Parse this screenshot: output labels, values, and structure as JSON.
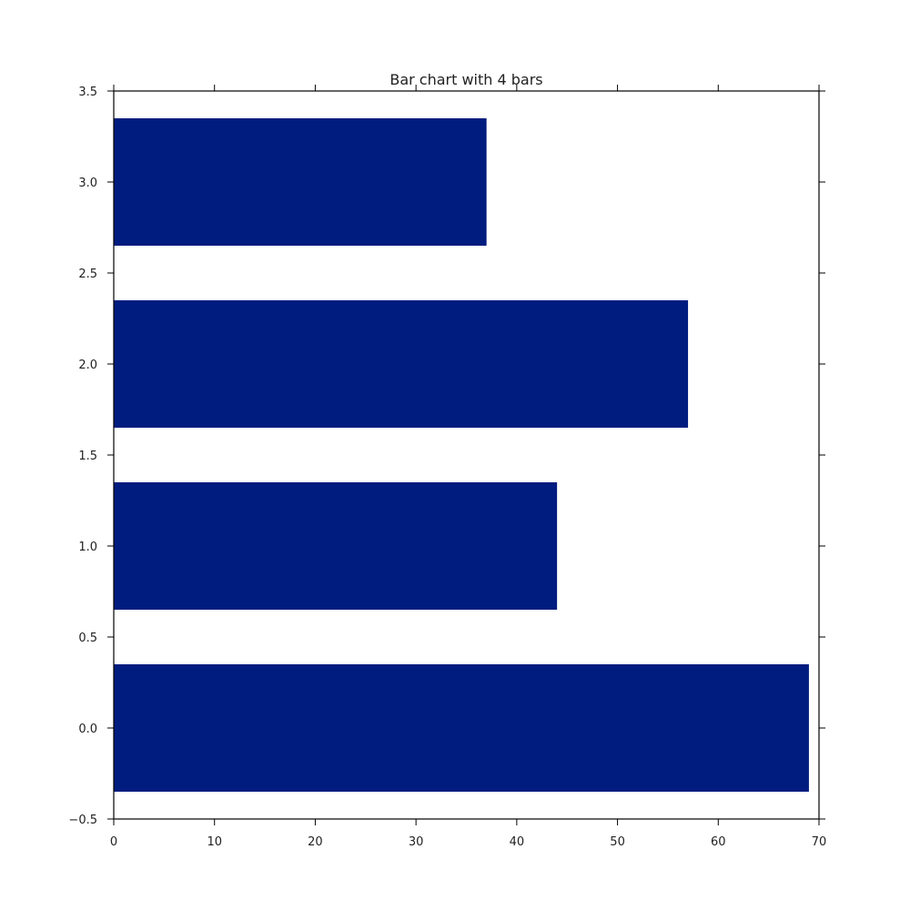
{
  "chart_data": {
    "type": "bar",
    "orientation": "horizontal",
    "title": "Bar chart with 4 bars",
    "xlabel": "",
    "ylabel": "",
    "categories": [
      0,
      1,
      2,
      3
    ],
    "values": [
      69,
      44,
      57,
      37
    ],
    "bar_height": 0.35,
    "xlim": [
      0,
      70
    ],
    "ylim": [
      -0.5,
      3.5
    ],
    "xticks": [
      0,
      10,
      20,
      30,
      40,
      50,
      60,
      70
    ],
    "xtick_labels": [
      "0",
      "10",
      "20",
      "30",
      "40",
      "50",
      "60",
      "70"
    ],
    "yticks": [
      -0.5,
      0.0,
      0.5,
      1.0,
      1.5,
      2.0,
      2.5,
      3.0,
      3.5
    ],
    "ytick_labels": [
      "−0.5",
      "0.0",
      "0.5",
      "1.0",
      "1.5",
      "2.0",
      "2.5",
      "3.0",
      "3.5"
    ],
    "grid": false,
    "legend": "none",
    "bar_color": "#001c7f",
    "axis_color": "#000000"
  }
}
